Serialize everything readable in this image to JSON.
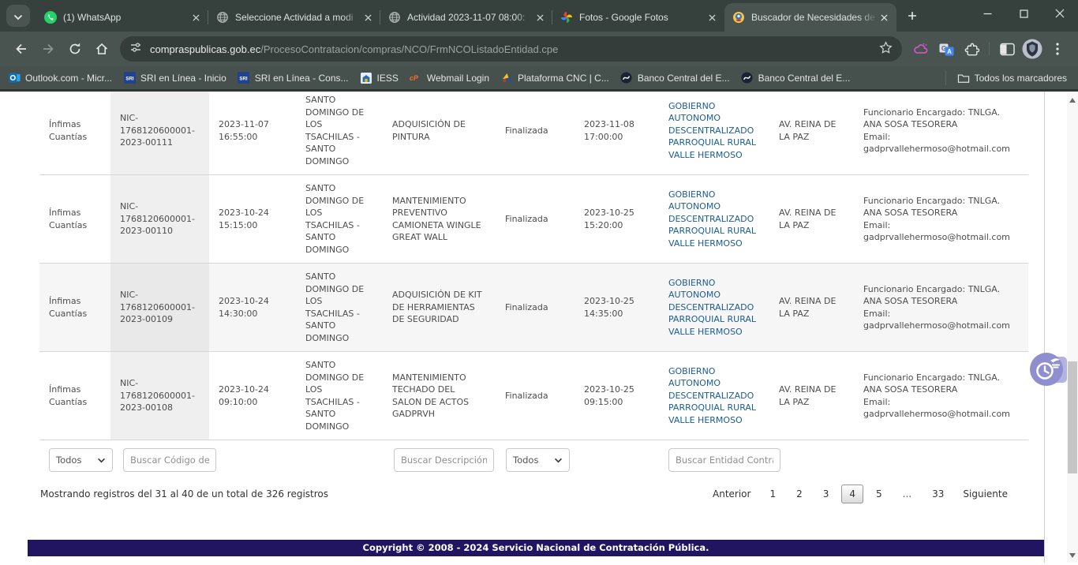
{
  "browser": {
    "tabs": [
      {
        "title": "(1) WhatsApp",
        "icon": "whatsapp-icon"
      },
      {
        "title": "Seleccione Actividad a modi",
        "icon": "globe-icon"
      },
      {
        "title": "Actividad 2023-11-07 08:00:",
        "icon": "globe-icon"
      },
      {
        "title": "Fotos - Google Fotos",
        "icon": "google-photos-icon"
      },
      {
        "title": "Buscador de Necesidades de",
        "icon": "ecuador-emblem-icon",
        "active": true
      }
    ],
    "omnibox": {
      "domain": "compraspublicas.gob.ec",
      "path": "/ProcesoContratacion/compras/NCO/FrmNCOListadoEntidad.cpe"
    },
    "bookmarks": [
      "Outlook.com - Micr...",
      "SRI en Línea - Inicio",
      "SRI en Línea - Cons...",
      "IESS",
      "Webmail Login",
      "Plataforma CNC | C...",
      "Banco Central del E...",
      "Banco Central del E..."
    ],
    "all_bookmarks_label": "Todos los marcadores"
  },
  "table": {
    "columns": [
      {
        "key": "tipo",
        "class": "col-tipo"
      },
      {
        "key": "codigo",
        "class": "col-codigo"
      },
      {
        "key": "fecha_publicacion",
        "class": "col-fecha"
      },
      {
        "key": "localidad",
        "class": "col-localidad"
      },
      {
        "key": "objeto",
        "class": "col-objeto"
      },
      {
        "key": "estado",
        "class": "col-estado"
      },
      {
        "key": "fecha_limite",
        "class": "col-fecha2"
      },
      {
        "key": "entidad",
        "class": "col-entidad"
      },
      {
        "key": "direccion",
        "class": "col-direccion"
      },
      {
        "key": "contacto",
        "class": "col-contacto"
      }
    ],
    "shaded_row_index": 2,
    "rows": [
      {
        "tipo": "Ínfimas Cuantías",
        "codigo": "NIC-1768120600001-2023-00111",
        "fecha_publicacion": "2023-11-07 16:55:00",
        "localidad": "SANTO DOMINGO DE LOS TSACHILAS - SANTO DOMINGO",
        "objeto": "ADQUISICIÓN DE PINTURA",
        "estado": "Finalizada",
        "fecha_limite": "2023-11-08 17:00:00",
        "entidad": "GOBIERNO AUTONOMO DESCENTRALIZADO PARROQUIAL RURAL VALLE HERMOSO",
        "direccion": "AV. REINA DE LA PAZ",
        "contacto": [
          "Funcionario Encargado: TNLGA. ANA SOSA TESORERA",
          "Email: gadprvallehermoso@hotmail.com"
        ]
      },
      {
        "tipo": "Ínfimas Cuantías",
        "codigo": "NIC-1768120600001-2023-00110",
        "fecha_publicacion": "2023-10-24 15:15:00",
        "localidad": "SANTO DOMINGO DE LOS TSACHILAS - SANTO DOMINGO",
        "objeto": "MANTENIMIENTO PREVENTIVO CAMIONETA WINGLE GREAT WALL",
        "estado": "Finalizada",
        "fecha_limite": "2023-10-25 15:20:00",
        "entidad": "GOBIERNO AUTONOMO DESCENTRALIZADO PARROQUIAL RURAL VALLE HERMOSO",
        "direccion": "AV. REINA DE LA PAZ",
        "contacto": [
          "Funcionario Encargado: TNLGA. ANA SOSA TESORERA",
          "Email: gadprvallehermoso@hotmail.com"
        ]
      },
      {
        "tipo": "Ínfimas Cuantías",
        "codigo": "NIC-1768120600001-2023-00109",
        "fecha_publicacion": "2023-10-24 14:30:00",
        "localidad": "SANTO DOMINGO DE LOS TSACHILAS - SANTO DOMINGO",
        "objeto": "ADQUISICIÓN DE KIT DE HERRAMIENTAS DE SEGURIDAD",
        "estado": "Finalizada",
        "fecha_limite": "2023-10-25 14:35:00",
        "entidad": "GOBIERNO AUTONOMO DESCENTRALIZADO PARROQUIAL RURAL VALLE HERMOSO",
        "direccion": "AV. REINA DE LA PAZ",
        "contacto": [
          "Funcionario Encargado: TNLGA. ANA SOSA TESORERA",
          "Email: gadprvallehermoso@hotmail.com"
        ]
      },
      {
        "tipo": "Ínfimas Cuantías",
        "codigo": "NIC-1768120600001-2023-00108",
        "fecha_publicacion": "2023-10-24 09:10:00",
        "localidad": "SANTO DOMINGO DE LOS TSACHILAS - SANTO DOMINGO",
        "objeto": "MANTENIMIENTO TECHADO DEL SALON DE ACTOS GADPRVH",
        "estado": "Finalizada",
        "fecha_limite": "2023-10-25 09:15:00",
        "entidad": "GOBIERNO AUTONOMO DESCENTRALIZADO PARROQUIAL RURAL VALLE HERMOSO",
        "direccion": "AV. REINA DE LA PAZ",
        "contacto": [
          "Funcionario Encargado: TNLGA. ANA SOSA TESORERA",
          "Email: gadprvallehermoso@hotmail.com"
        ]
      }
    ]
  },
  "filters": {
    "tipo_select_value": "Todos",
    "codigo_placeholder": "Buscar Código de",
    "descripcion_placeholder": "Buscar Descripción c",
    "estado_select_value": "Todos",
    "entidad_placeholder": "Buscar Entidad Contrat"
  },
  "pagination": {
    "info": "Mostrando registros del 31 al 40 de un total de 326 registros",
    "previous_label": "Anterior",
    "pages": [
      "1",
      "2",
      "3",
      "4",
      "5",
      "...",
      "33"
    ],
    "current_page": "4",
    "next_label": "Siguiente"
  },
  "footer": {
    "copyright": "Copyright © 2008 - 2024 Servicio Nacional de Contratación Pública."
  },
  "colors": {
    "entity_link": "#1d5b94",
    "footer_bg": "#211461",
    "chrome_frame": "#36403d",
    "chrome_toolbar": "#49534f",
    "whatsapp_green": "#25d366",
    "row_alt_bg": "#f6f6f6",
    "code_column_bg": "#efefef"
  }
}
